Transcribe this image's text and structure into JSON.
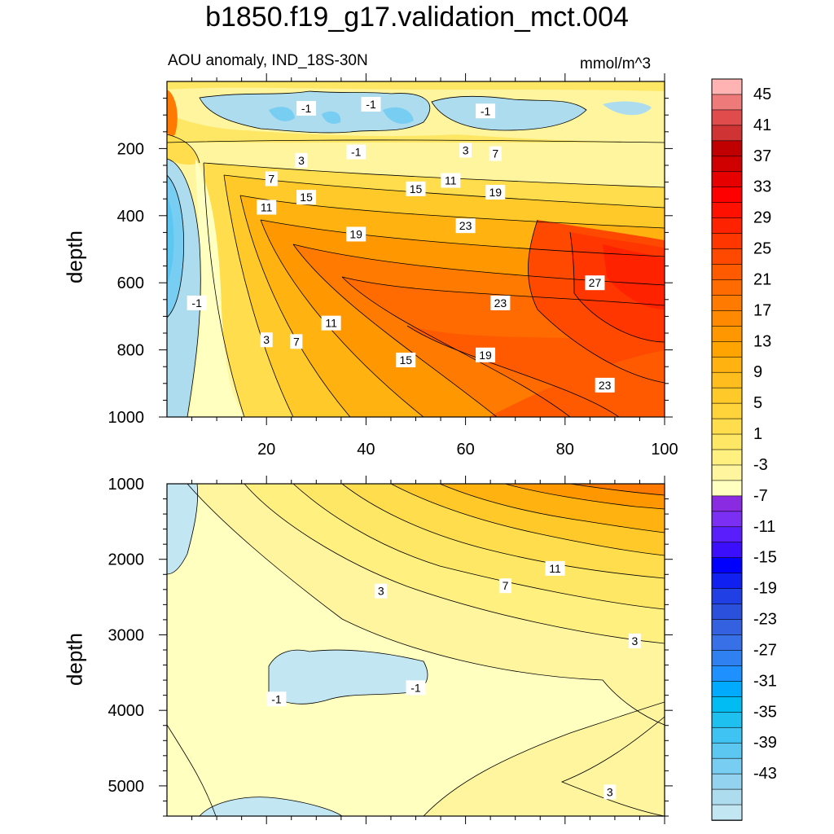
{
  "title": "b1850.f19_g17.validation_mct.004",
  "subtitle": "AOU anomaly, IND_18S-30N",
  "units": "mmol/m^3",
  "colors": {
    "neg": [
      "#8a2be2",
      "#7b2ff2",
      "#5a1efc",
      "#3c0ffc",
      "#0000ff",
      "#1020f0",
      "#2040e6",
      "#2a50dc",
      "#3461e0",
      "#3870e8",
      "#2f80f0",
      "#1e90ff",
      "#00aaff",
      "#00bcf2",
      "#1ec0f0",
      "#3ec3f2",
      "#5cc8f2",
      "#78cdf2",
      "#94d3f0",
      "#aedcef",
      "#c3e6f3"
    ],
    "pos": [
      "#ffffc0",
      "#fff59e",
      "#fff080",
      "#ffe766",
      "#ffdd4d",
      "#ffd339",
      "#ffc92a",
      "#ffbe1d",
      "#ffb210",
      "#ffa400",
      "#ff9700",
      "#ff8900",
      "#ff7a00",
      "#ff6b00",
      "#ff5a00",
      "#ff4800",
      "#ff3600",
      "#ff2200",
      "#ff1000",
      "#ff0000",
      "#e60000",
      "#d00000",
      "#c00000",
      "#d03333",
      "#e04c4c",
      "#ee7a7a",
      "#ffb3b3"
    ]
  },
  "colorbar_labels": [
    "45",
    "41",
    "37",
    "33",
    "29",
    "25",
    "21",
    "17",
    "13",
    "9",
    "5",
    "1",
    "-3",
    "-7",
    "-11",
    "-15",
    "-19",
    "-23",
    "-27",
    "-31",
    "-35",
    "-39",
    "-43"
  ],
  "chart_data": [
    {
      "type": "heatmap",
      "panel": "upper",
      "ylabel": "depth",
      "xticks": [
        "20",
        "40",
        "60",
        "80",
        "100"
      ],
      "yticks": [
        "200",
        "400",
        "600",
        "800",
        "1000"
      ],
      "ylim": [
        0,
        1000
      ],
      "xlim": [
        0,
        100
      ],
      "contour_labels": [
        {
          "text": "-1",
          "x": 28,
          "y": 80
        },
        {
          "text": "-1",
          "x": 41,
          "y": 68
        },
        {
          "text": "-1",
          "x": 64,
          "y": 88
        },
        {
          "text": "-1",
          "x": 38,
          "y": 210
        },
        {
          "text": "3",
          "x": 60,
          "y": 205
        },
        {
          "text": "7",
          "x": 66,
          "y": 215
        },
        {
          "text": "3",
          "x": 27,
          "y": 235
        },
        {
          "text": "7",
          "x": 21,
          "y": 290
        },
        {
          "text": "15",
          "x": 28,
          "y": 345
        },
        {
          "text": "11",
          "x": 20,
          "y": 375
        },
        {
          "text": "15",
          "x": 50,
          "y": 320
        },
        {
          "text": "11",
          "x": 57,
          "y": 295
        },
        {
          "text": "19",
          "x": 66,
          "y": 330
        },
        {
          "text": "19",
          "x": 38,
          "y": 455
        },
        {
          "text": "23",
          "x": 60,
          "y": 430
        },
        {
          "text": "27",
          "x": 86,
          "y": 600
        },
        {
          "text": "-1",
          "x": 6,
          "y": 660
        },
        {
          "text": "23",
          "x": 67,
          "y": 660
        },
        {
          "text": "11",
          "x": 33,
          "y": 720
        },
        {
          "text": "3",
          "x": 20,
          "y": 770
        },
        {
          "text": "7",
          "x": 26,
          "y": 775
        },
        {
          "text": "15",
          "x": 48,
          "y": 830
        },
        {
          "text": "19",
          "x": 64,
          "y": 815
        },
        {
          "text": "23",
          "x": 88,
          "y": 905
        }
      ]
    },
    {
      "type": "heatmap",
      "panel": "lower",
      "ylabel": "depth",
      "yticks": [
        "1000",
        "2000",
        "3000",
        "4000",
        "5000"
      ],
      "ylim": [
        1000,
        5400
      ],
      "xlim": [
        0,
        100
      ],
      "contour_labels": [
        {
          "text": "11",
          "x": 78,
          "y": 2120
        },
        {
          "text": "7",
          "x": 68,
          "y": 2350
        },
        {
          "text": "3",
          "x": 43,
          "y": 2420
        },
        {
          "text": "3",
          "x": 94,
          "y": 3080
        },
        {
          "text": "-1",
          "x": 50,
          "y": 3700
        },
        {
          "text": "-1",
          "x": 22,
          "y": 3850
        },
        {
          "text": "3",
          "x": 89,
          "y": 5080
        }
      ]
    }
  ]
}
